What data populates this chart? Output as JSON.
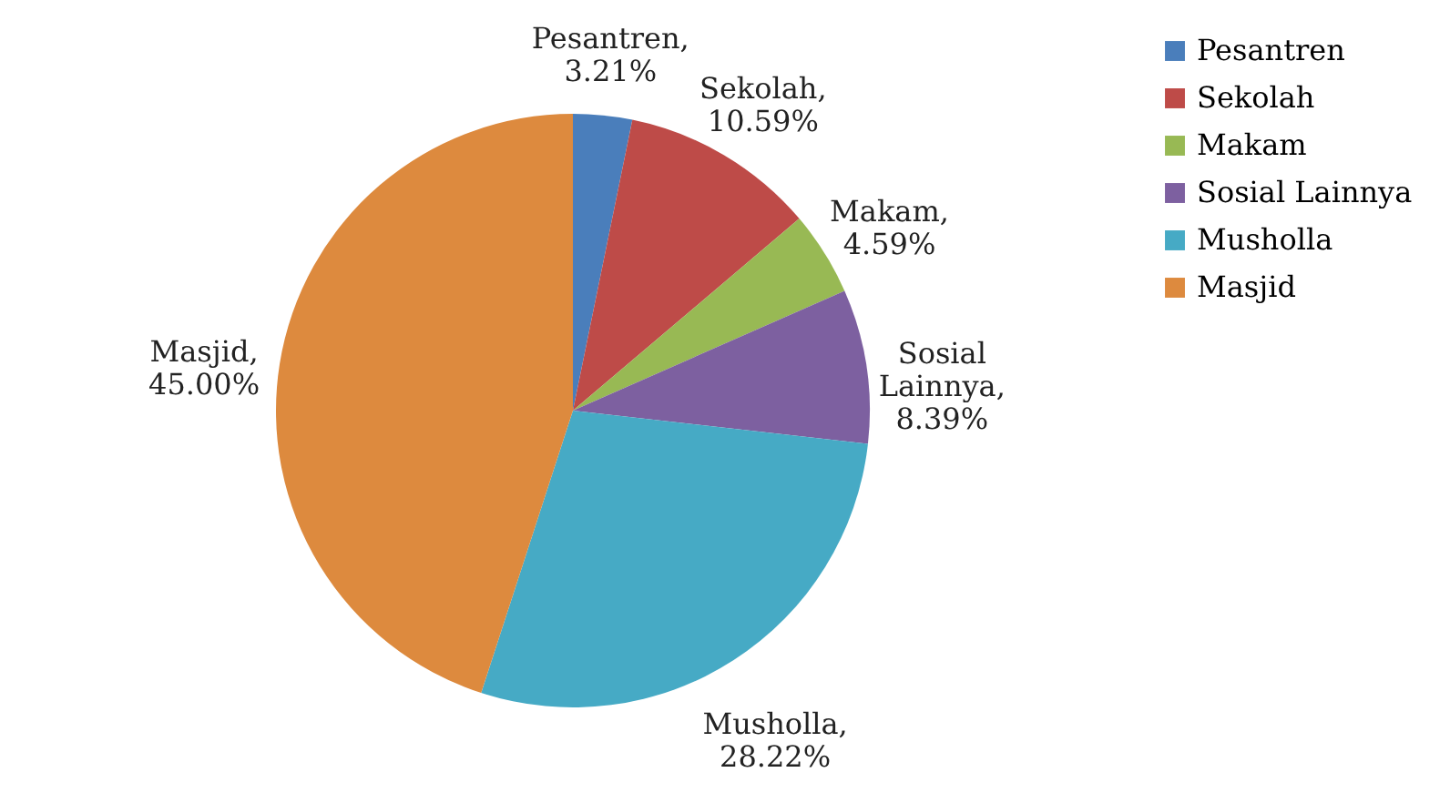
{
  "chart_data": {
    "type": "pie",
    "categories": [
      "Pesantren",
      "Sekolah",
      "Makam",
      "Sosial Lainnya",
      "Musholla",
      "Masjid"
    ],
    "values": [
      3.21,
      10.59,
      4.59,
      8.39,
      28.22,
      45.0
    ],
    "value_labels": [
      "Pesantren, 3.21%",
      "Sekolah, 10.59%",
      "Makam, 4.59%",
      "Sosial Lainnya, 8.39%",
      "Musholla, 28.22%",
      "Masjid, 45.00%"
    ],
    "colors": [
      "#4a7ebb",
      "#be4b48",
      "#98b954",
      "#7d60a0",
      "#46aac5",
      "#dd8a3e"
    ],
    "legend": "right"
  }
}
